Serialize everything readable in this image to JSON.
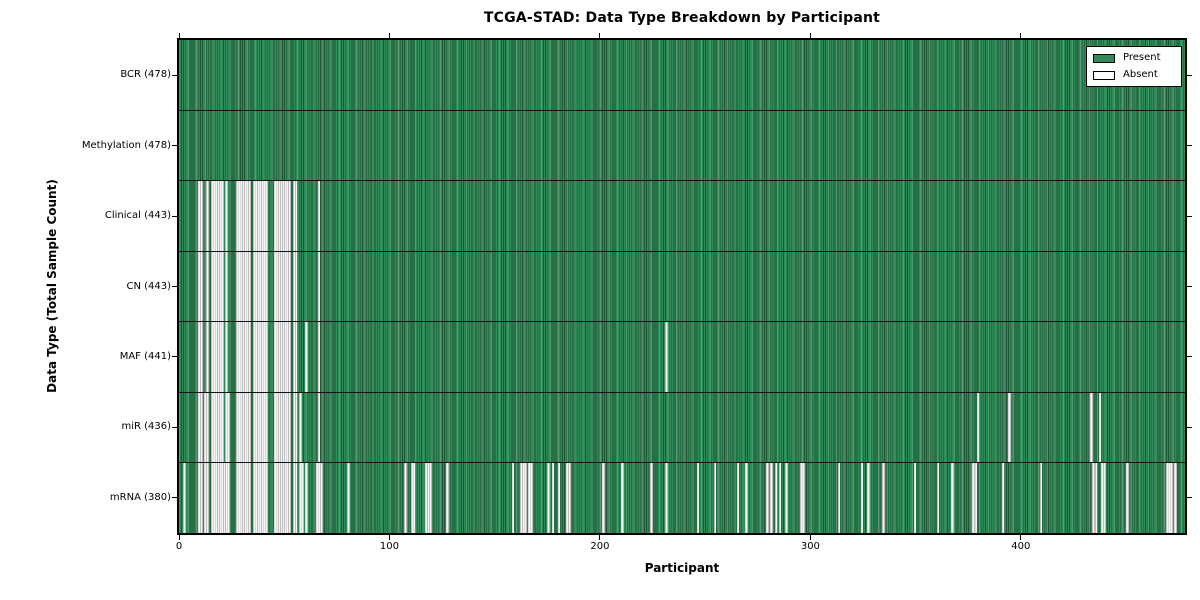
{
  "title": "TCGA-STAD: Data Type Breakdown by Participant",
  "axes": {
    "xlabel": "Participant",
    "ylabel": "Data Type (Total Sample Count)",
    "x_tick_labels": [
      "0",
      "100",
      "200",
      "300",
      "400"
    ],
    "x_tick_values": [
      0,
      100,
      200,
      300,
      400
    ],
    "x_range": [
      0,
      478
    ]
  },
  "legend": {
    "position": "upper right",
    "entries": [
      {
        "label": "Present",
        "color": "#2e8b57"
      },
      {
        "label": "Absent",
        "color": "#ffffff"
      }
    ]
  },
  "colors": {
    "present": "#2e8b57",
    "present_edge": "#1c5736",
    "absent_fill": "#f5f5f5",
    "absent_edge": "#bdbdbd",
    "spine": "#000000"
  },
  "chart_data": {
    "type": "heatmap",
    "title": "TCGA-STAD: Data Type Breakdown by Participant",
    "xlabel": "Participant",
    "ylabel": "Data Type (Total Sample Count)",
    "x_range": [
      0,
      478
    ],
    "n_participants": 478,
    "grid": false,
    "legend_entries": [
      "Present",
      "Absent"
    ],
    "legend_position": "upper right",
    "rows": [
      {
        "data_type": "BCR",
        "label": "BCR (478)",
        "present_count": 478,
        "absent_participants": []
      },
      {
        "data_type": "Methylation",
        "label": "Methylation (478)",
        "present_count": 478,
        "absent_participants": []
      },
      {
        "data_type": "Clinical",
        "label": "Clinical (443)",
        "present_count": 443,
        "absent_participants": [
          9,
          10,
          13,
          15,
          16,
          17,
          18,
          19,
          20,
          22,
          27,
          28,
          29,
          30,
          31,
          32,
          33,
          35,
          36,
          37,
          38,
          39,
          40,
          41,
          45,
          46,
          47,
          48,
          49,
          50,
          51,
          52,
          54,
          55,
          66
        ]
      },
      {
        "data_type": "CN",
        "label": "CN (443)",
        "present_count": 443,
        "absent_participants": [
          9,
          10,
          13,
          15,
          16,
          17,
          18,
          19,
          20,
          22,
          27,
          28,
          29,
          30,
          31,
          32,
          33,
          35,
          36,
          37,
          38,
          39,
          40,
          41,
          45,
          46,
          47,
          48,
          49,
          50,
          51,
          52,
          54,
          55,
          66
        ]
      },
      {
        "data_type": "MAF",
        "label": "MAF (441)",
        "present_count": 441,
        "absent_participants": [
          9,
          10,
          13,
          15,
          16,
          17,
          18,
          19,
          20,
          22,
          27,
          28,
          29,
          30,
          31,
          32,
          33,
          35,
          36,
          37,
          38,
          39,
          40,
          41,
          45,
          46,
          47,
          48,
          49,
          50,
          51,
          52,
          54,
          55,
          60,
          66,
          231
        ]
      },
      {
        "data_type": "miR",
        "label": "miR (436)",
        "present_count": 436,
        "absent_participants": [
          9,
          10,
          12,
          13,
          15,
          16,
          17,
          18,
          19,
          20,
          22,
          23,
          27,
          28,
          29,
          30,
          31,
          32,
          33,
          35,
          36,
          37,
          38,
          39,
          40,
          41,
          45,
          46,
          47,
          48,
          49,
          50,
          51,
          52,
          54,
          55,
          57,
          66,
          379,
          394,
          433,
          437
        ]
      },
      {
        "data_type": "mRNA",
        "label": "mRNA (380)",
        "present_count": 380,
        "absent_participants": [
          2,
          9,
          10,
          12,
          13,
          15,
          16,
          17,
          18,
          19,
          20,
          21,
          22,
          23,
          27,
          28,
          29,
          30,
          31,
          32,
          33,
          35,
          36,
          37,
          38,
          39,
          40,
          41,
          45,
          46,
          47,
          48,
          49,
          50,
          51,
          52,
          54,
          55,
          57,
          58,
          60,
          65,
          66,
          67,
          80,
          107,
          110,
          111,
          117,
          118,
          119,
          127,
          158,
          162,
          163,
          164,
          166,
          167,
          175,
          177,
          180,
          184,
          185,
          201,
          210,
          224,
          231,
          246,
          254,
          265,
          269,
          279,
          281,
          283,
          285,
          288,
          295,
          296,
          313,
          324,
          327,
          334,
          349,
          360,
          367,
          377,
          378,
          391,
          409,
          434,
          435,
          438,
          439,
          450,
          469,
          470,
          471,
          473
        ]
      }
    ]
  }
}
